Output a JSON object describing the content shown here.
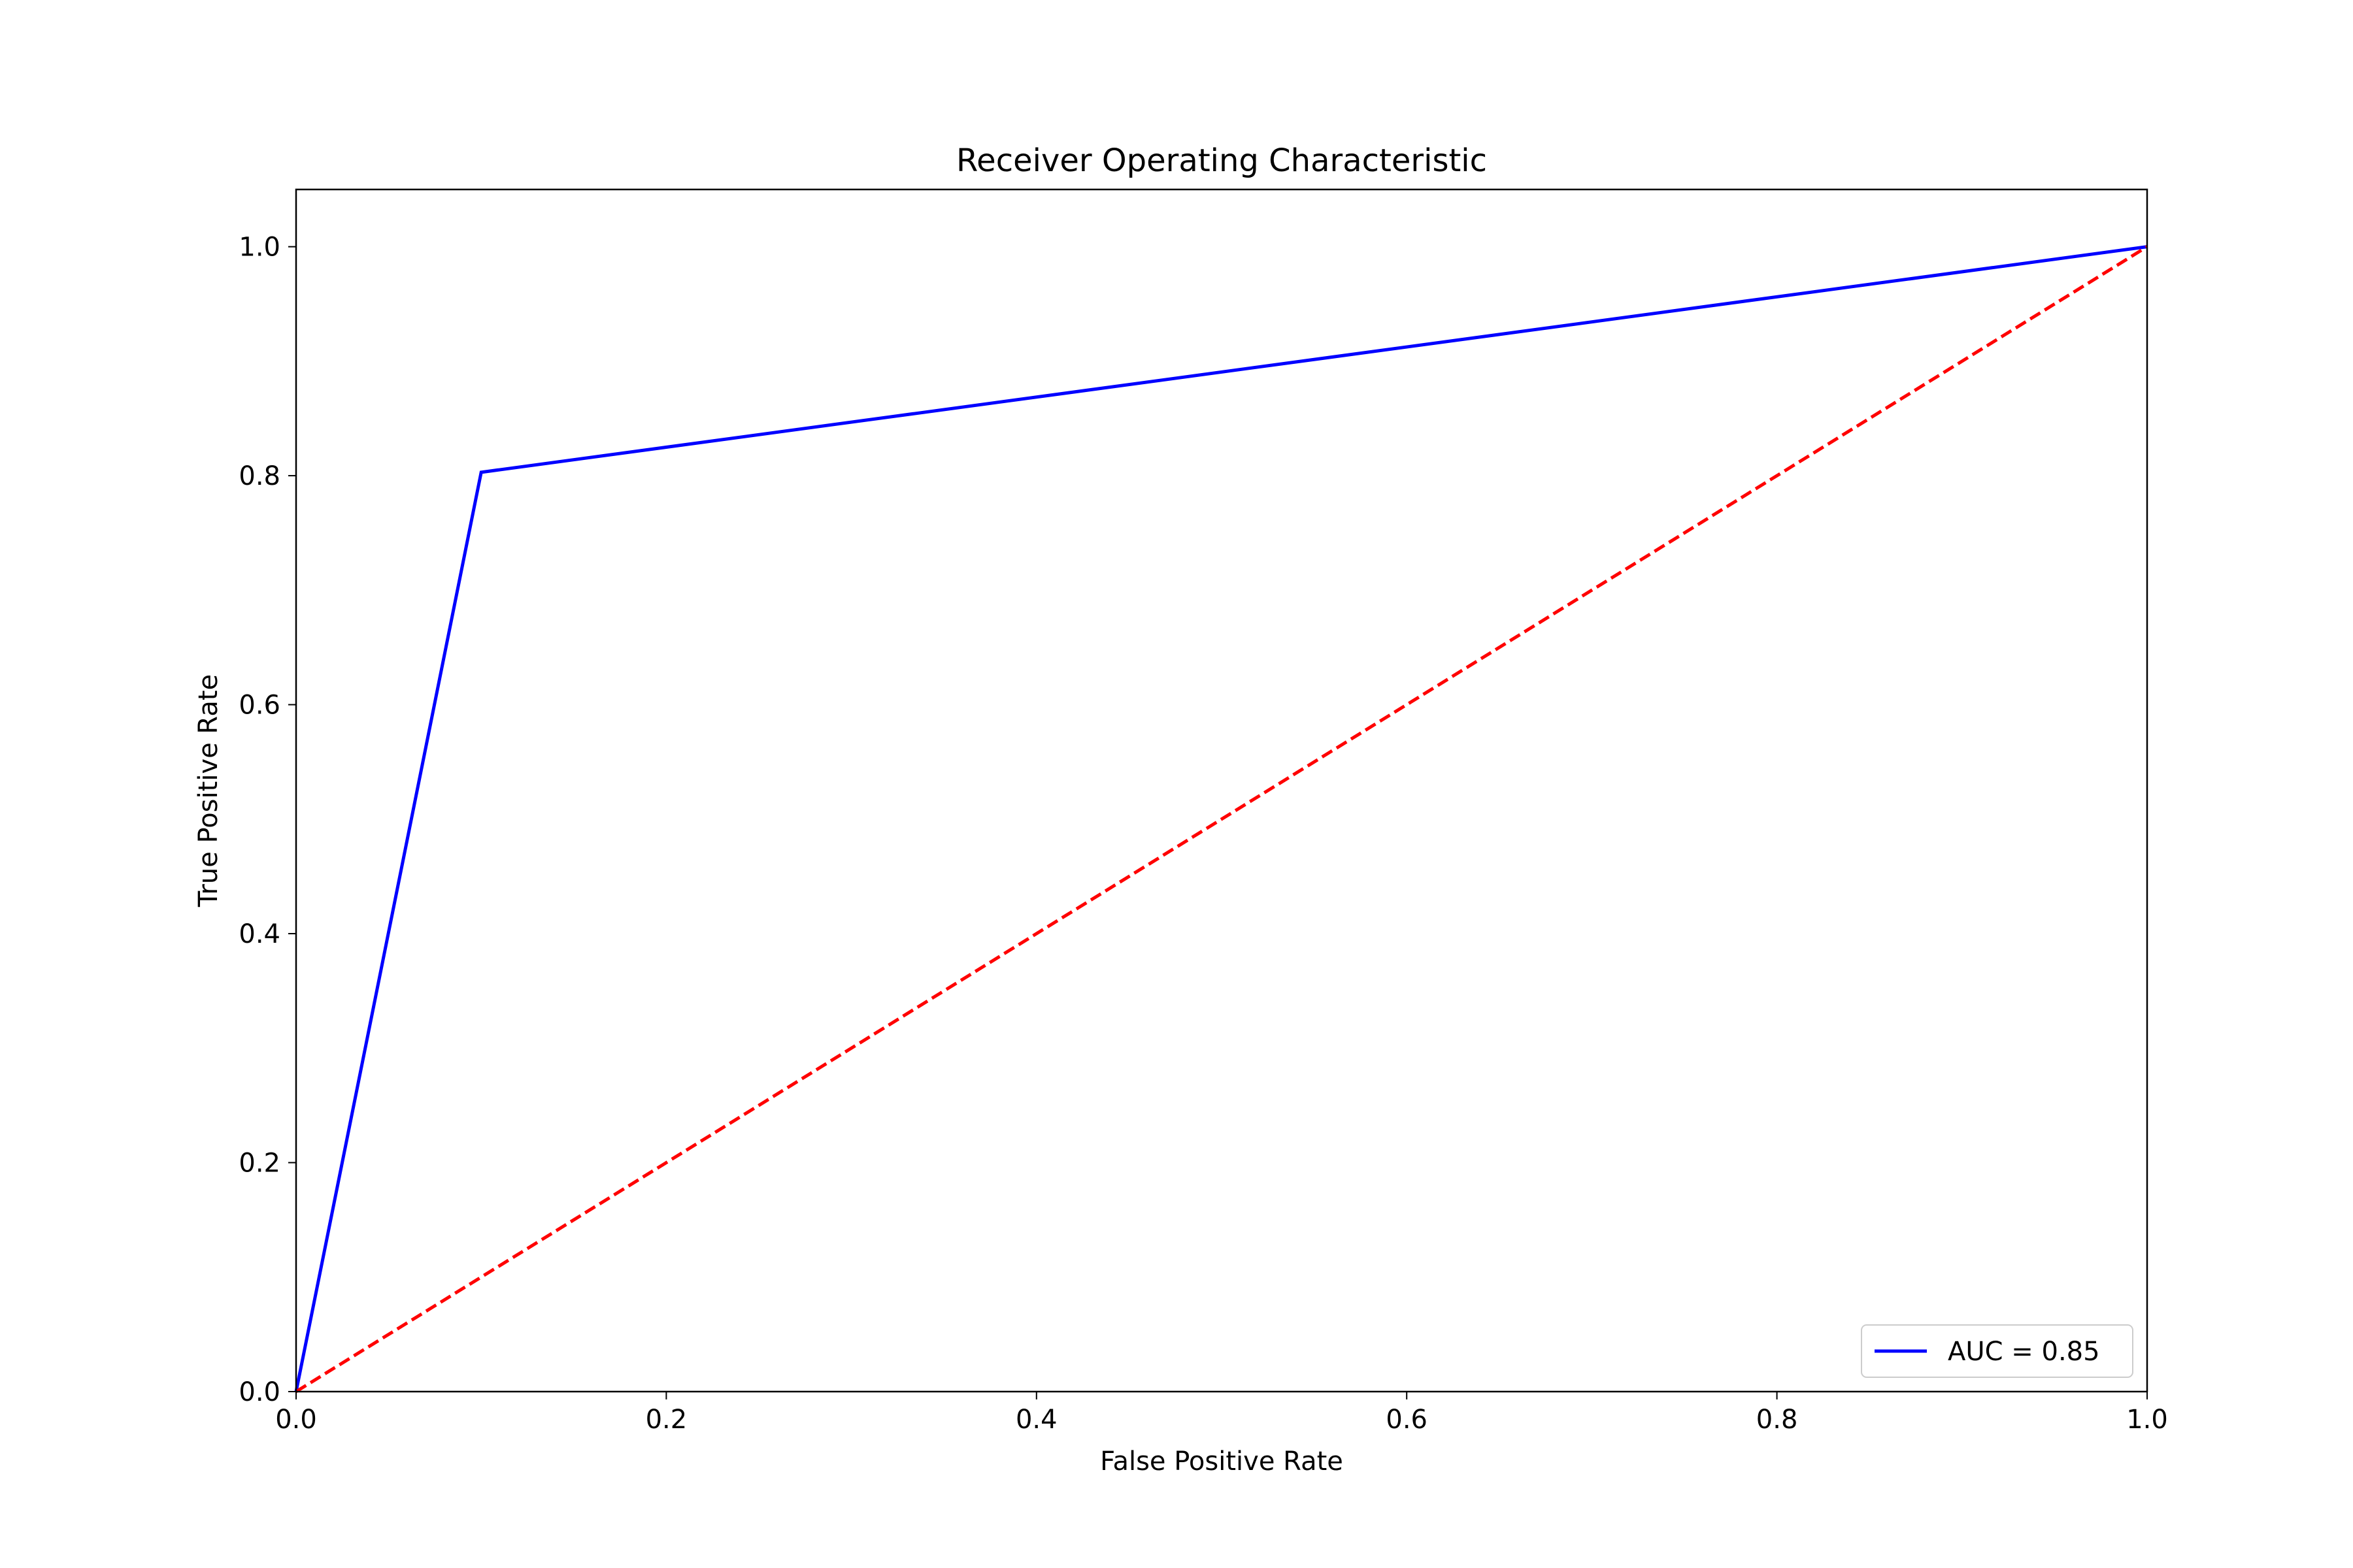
{
  "chart_data": {
    "type": "line",
    "title": "Receiver Operating Characteristic",
    "xlabel": "False Positive Rate",
    "ylabel": "True Positive Rate",
    "xlim": [
      0.0,
      1.0
    ],
    "ylim": [
      0.0,
      1.05
    ],
    "xticks": [
      0.0,
      0.2,
      0.4,
      0.6,
      0.8,
      1.0
    ],
    "yticks": [
      0.0,
      0.2,
      0.4,
      0.6,
      0.8,
      1.0
    ],
    "xtick_labels": [
      "0.0",
      "0.2",
      "0.4",
      "0.6",
      "0.8",
      "1.0"
    ],
    "ytick_labels": [
      "0.0",
      "0.2",
      "0.4",
      "0.6",
      "0.8",
      "1.0"
    ],
    "grid": false,
    "legend_position": "lower right",
    "series": [
      {
        "name": "AUC = 0.85",
        "color": "#0000ff",
        "style": "solid",
        "x": [
          0.0,
          0.1,
          1.0
        ],
        "y": [
          0.0,
          0.803,
          1.0
        ]
      },
      {
        "color": "#ff0000",
        "style": "dashed",
        "x": [
          0.0,
          1.0
        ],
        "y": [
          0.0,
          1.0
        ]
      }
    ]
  }
}
